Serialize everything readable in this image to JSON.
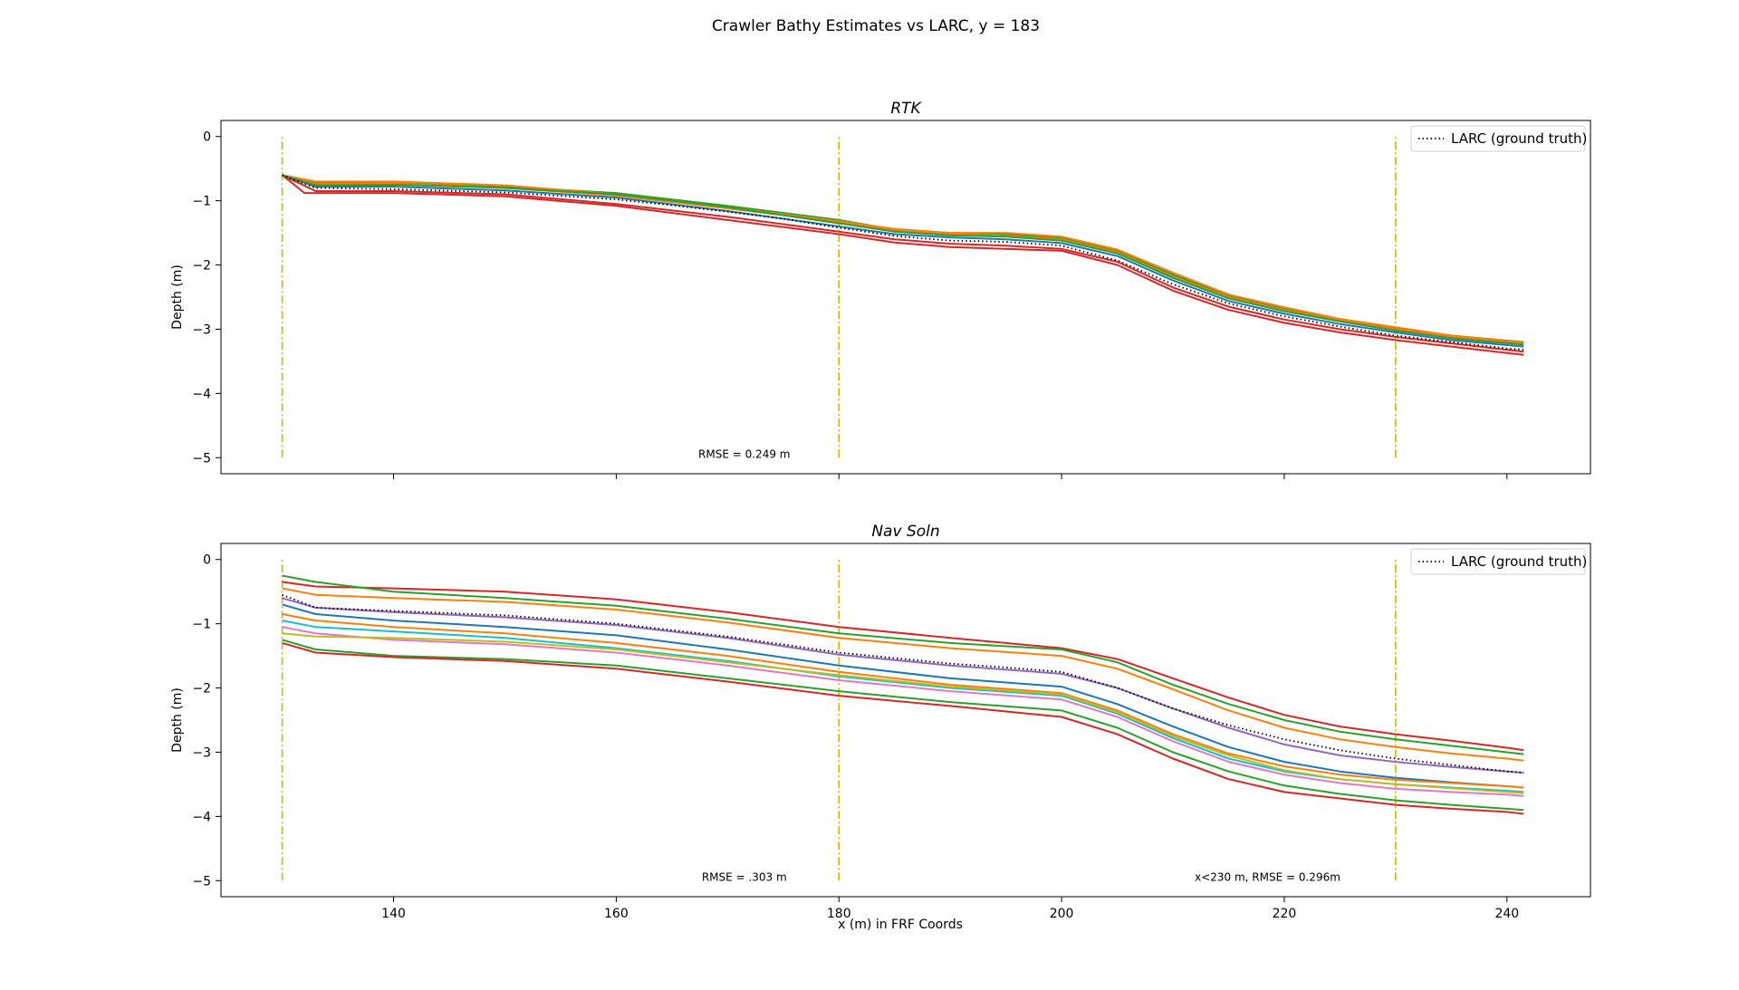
{
  "figure": {
    "title": "Crawler Bathy Estimates vs LARC, y = 183",
    "xlabel": "x (m) in FRF Coords"
  },
  "chart_data": [
    {
      "type": "line",
      "title": "RTK",
      "xlabel": "",
      "ylabel": "Depth (m)",
      "xlim": [
        124.5,
        247.5
      ],
      "ylim": [
        -5.25,
        0.25
      ],
      "xticks": [
        140,
        160,
        180,
        200,
        220,
        240
      ],
      "yticks": [
        0,
        -1,
        -2,
        -3,
        -4,
        -5
      ],
      "show_xtick_labels": false,
      "grid": false,
      "legend": {
        "location": "top-right",
        "entries": [
          "LARC (ground truth)"
        ]
      },
      "vlines": {
        "x": [
          130,
          180,
          230
        ],
        "y_range": [
          -5,
          0
        ],
        "color": "#bfbf00",
        "style": "dash-dot"
      },
      "annotations": [
        {
          "text": "RMSE = 0.249 m",
          "x": 171.5,
          "y": -5
        }
      ],
      "ground_truth": {
        "name": "LARC (ground truth)",
        "color": "#000000",
        "style": "dotted",
        "x": [
          130,
          133,
          140,
          150,
          160,
          165,
          170,
          175,
          180,
          185,
          190,
          195,
          200,
          205,
          210,
          215,
          220,
          225,
          230,
          235,
          240,
          241.5
        ],
        "y": [
          -0.6,
          -0.8,
          -0.82,
          -0.87,
          -0.98,
          -1.07,
          -1.17,
          -1.28,
          -1.42,
          -1.55,
          -1.62,
          -1.64,
          -1.7,
          -1.93,
          -2.3,
          -2.6,
          -2.8,
          -2.96,
          -3.1,
          -3.2,
          -3.3,
          -3.32
        ]
      },
      "estimates": [
        {
          "color": "#2ca02c",
          "x": [
            130,
            133,
            140,
            150,
            160,
            170,
            180,
            185,
            190,
            195,
            200,
            205,
            210,
            215,
            220,
            225,
            230,
            235,
            241.5
          ],
          "y": [
            -0.6,
            -0.72,
            -0.72,
            -0.78,
            -0.88,
            -1.08,
            -1.3,
            -1.45,
            -1.5,
            -1.52,
            -1.58,
            -1.78,
            -2.15,
            -2.48,
            -2.68,
            -2.85,
            -2.98,
            -3.1,
            -3.2
          ]
        },
        {
          "color": "#ff7f0e",
          "x": [
            130,
            133,
            140,
            150,
            160,
            170,
            180,
            185,
            190,
            195,
            200,
            205,
            210,
            215,
            220,
            225,
            230,
            235,
            241.5
          ],
          "y": [
            -0.6,
            -0.74,
            -0.73,
            -0.8,
            -0.92,
            -1.12,
            -1.33,
            -1.47,
            -1.52,
            -1.55,
            -1.6,
            -1.8,
            -2.18,
            -2.5,
            -2.7,
            -2.87,
            -3.0,
            -3.12,
            -3.23
          ]
        },
        {
          "color": "#1f77b4",
          "x": [
            130,
            133,
            140,
            150,
            160,
            170,
            180,
            185,
            190,
            195,
            200,
            205,
            210,
            215,
            220,
            225,
            230,
            235,
            241.5
          ],
          "y": [
            -0.6,
            -0.78,
            -0.78,
            -0.84,
            -0.95,
            -1.16,
            -1.4,
            -1.52,
            -1.57,
            -1.6,
            -1.66,
            -1.86,
            -2.24,
            -2.56,
            -2.76,
            -2.92,
            -3.05,
            -3.17,
            -3.27
          ]
        },
        {
          "color": "#d62728",
          "x": [
            130,
            133,
            140,
            150,
            160,
            170,
            180,
            185,
            190,
            195,
            200,
            205,
            210,
            215,
            220,
            225,
            230,
            235,
            241.5
          ],
          "y": [
            -0.6,
            -0.85,
            -0.85,
            -0.9,
            -1.05,
            -1.25,
            -1.48,
            -1.6,
            -1.67,
            -1.7,
            -1.75,
            -1.95,
            -2.35,
            -2.65,
            -2.85,
            -3.0,
            -3.12,
            -3.22,
            -3.35
          ]
        },
        {
          "color": "#d62728",
          "x": [
            130,
            132,
            140,
            150,
            160,
            170,
            180,
            185,
            190,
            195,
            200,
            205,
            210,
            215,
            220,
            225,
            230,
            235,
            241.5
          ],
          "y": [
            -0.6,
            -0.88,
            -0.88,
            -0.93,
            -1.08,
            -1.3,
            -1.52,
            -1.65,
            -1.72,
            -1.75,
            -1.78,
            -2.0,
            -2.4,
            -2.7,
            -2.9,
            -3.05,
            -3.17,
            -3.27,
            -3.4
          ]
        },
        {
          "color": "#ff7f0e",
          "x": [
            130,
            133,
            140,
            150,
            160,
            170,
            180,
            185,
            190,
            195,
            200,
            205,
            210,
            215,
            220,
            225,
            230,
            235,
            241.5
          ],
          "y": [
            -0.6,
            -0.7,
            -0.7,
            -0.76,
            -0.9,
            -1.1,
            -1.32,
            -1.44,
            -1.5,
            -1.5,
            -1.56,
            -1.76,
            -2.12,
            -2.46,
            -2.66,
            -2.84,
            -2.97,
            -3.1,
            -3.21
          ]
        },
        {
          "color": "#2ca02c",
          "x": [
            130,
            133,
            140,
            150,
            160,
            170,
            180,
            185,
            190,
            195,
            200,
            205,
            210,
            215,
            220,
            225,
            230,
            235,
            241.5
          ],
          "y": [
            -0.6,
            -0.76,
            -0.75,
            -0.8,
            -0.9,
            -1.1,
            -1.35,
            -1.48,
            -1.54,
            -1.56,
            -1.62,
            -1.82,
            -2.2,
            -2.52,
            -2.72,
            -2.88,
            -3.02,
            -3.14,
            -3.24
          ]
        }
      ]
    },
    {
      "type": "line",
      "title": "Nav Soln",
      "xlabel": "x (m) in FRF Coords",
      "ylabel": "Depth (m)",
      "xlim": [
        124.5,
        247.5
      ],
      "ylim": [
        -5.25,
        0.25
      ],
      "xticks": [
        140,
        160,
        180,
        200,
        220,
        240
      ],
      "yticks": [
        0,
        -1,
        -2,
        -3,
        -4,
        -5
      ],
      "show_xtick_labels": true,
      "grid": false,
      "legend": {
        "location": "top-right",
        "entries": [
          "LARC (ground truth)"
        ]
      },
      "vlines": {
        "x": [
          130,
          180,
          230
        ],
        "y_range": [
          -5,
          0
        ],
        "color": "#bfbf00",
        "style": "dash-dot"
      },
      "annotations": [
        {
          "text": "RMSE = .303 m",
          "x": 171.5,
          "y": -5
        },
        {
          "text": "x<230 m, RMSE = 0.296m",
          "x": 218.5,
          "y": -5
        }
      ],
      "ground_truth": {
        "name": "LARC (ground truth)",
        "color": "#000000",
        "style": "dotted",
        "x": [
          130,
          133,
          140,
          150,
          160,
          170,
          180,
          190,
          195,
          200,
          205,
          210,
          215,
          220,
          225,
          230,
          235,
          240,
          241.5
        ],
        "y": [
          -0.55,
          -0.75,
          -0.8,
          -0.87,
          -1.0,
          -1.2,
          -1.45,
          -1.62,
          -1.68,
          -1.75,
          -2.0,
          -2.32,
          -2.58,
          -2.8,
          -2.97,
          -3.1,
          -3.2,
          -3.3,
          -3.32
        ]
      },
      "estimates": [
        {
          "color": "#d62728",
          "x": [
            130,
            133,
            140,
            150,
            160,
            170,
            180,
            190,
            200,
            205,
            210,
            215,
            220,
            225,
            230,
            235,
            240,
            241.5
          ],
          "y": [
            -0.35,
            -0.42,
            -0.45,
            -0.5,
            -0.62,
            -0.82,
            -1.05,
            -1.22,
            -1.38,
            -1.55,
            -1.85,
            -2.15,
            -2.42,
            -2.6,
            -2.72,
            -2.82,
            -2.93,
            -2.97
          ]
        },
        {
          "color": "#2ca02c",
          "x": [
            130,
            133,
            140,
            150,
            160,
            170,
            180,
            190,
            200,
            205,
            210,
            215,
            220,
            225,
            230,
            235,
            240,
            241.5
          ],
          "y": [
            -0.25,
            -0.35,
            -0.5,
            -0.6,
            -0.72,
            -0.92,
            -1.15,
            -1.3,
            -1.4,
            -1.6,
            -1.95,
            -2.25,
            -2.5,
            -2.68,
            -2.8,
            -2.9,
            -3.0,
            -3.03
          ]
        },
        {
          "color": "#ff7f0e",
          "x": [
            130,
            133,
            140,
            150,
            160,
            170,
            180,
            190,
            200,
            205,
            210,
            215,
            220,
            225,
            230,
            235,
            240,
            241.5
          ],
          "y": [
            -0.45,
            -0.55,
            -0.6,
            -0.66,
            -0.78,
            -0.98,
            -1.22,
            -1.38,
            -1.5,
            -1.7,
            -2.02,
            -2.35,
            -2.62,
            -2.8,
            -2.92,
            -3.02,
            -3.1,
            -3.13
          ]
        },
        {
          "color": "#9467bd",
          "x": [
            130,
            133,
            140,
            150,
            160,
            170,
            180,
            190,
            200,
            205,
            210,
            215,
            220,
            225,
            230,
            235,
            240,
            241.5
          ],
          "y": [
            -0.6,
            -0.75,
            -0.82,
            -0.9,
            -1.02,
            -1.22,
            -1.48,
            -1.65,
            -1.78,
            -2.0,
            -2.32,
            -2.62,
            -2.88,
            -3.05,
            -3.15,
            -3.23,
            -3.3,
            -3.32
          ]
        },
        {
          "color": "#1f77b4",
          "x": [
            130,
            133,
            140,
            150,
            160,
            170,
            180,
            190,
            200,
            205,
            210,
            215,
            220,
            225,
            230,
            235,
            240,
            241.5
          ],
          "y": [
            -0.7,
            -0.85,
            -0.95,
            -1.05,
            -1.18,
            -1.4,
            -1.65,
            -1.85,
            -1.98,
            -2.25,
            -2.6,
            -2.92,
            -3.15,
            -3.3,
            -3.4,
            -3.47,
            -3.53,
            -3.55
          ]
        },
        {
          "color": "#ff7f0e",
          "x": [
            130,
            133,
            140,
            150,
            160,
            170,
            180,
            190,
            200,
            205,
            210,
            215,
            220,
            225,
            230,
            235,
            240,
            241.5
          ],
          "y": [
            -0.85,
            -0.95,
            -1.05,
            -1.15,
            -1.3,
            -1.5,
            -1.75,
            -1.95,
            -2.08,
            -2.35,
            -2.72,
            -3.02,
            -3.22,
            -3.35,
            -3.43,
            -3.48,
            -3.53,
            -3.55
          ]
        },
        {
          "color": "#17becf",
          "x": [
            130,
            133,
            140,
            150,
            160,
            170,
            180,
            190,
            200,
            205,
            210,
            215,
            220,
            225,
            230,
            235,
            240,
            241.5
          ],
          "y": [
            -0.95,
            -1.05,
            -1.12,
            -1.22,
            -1.38,
            -1.58,
            -1.82,
            -2.0,
            -2.12,
            -2.4,
            -2.78,
            -3.1,
            -3.3,
            -3.42,
            -3.5,
            -3.55,
            -3.6,
            -3.62
          ]
        },
        {
          "color": "#e377c2",
          "x": [
            130,
            133,
            140,
            150,
            160,
            170,
            180,
            190,
            200,
            205,
            210,
            215,
            220,
            225,
            230,
            235,
            240,
            241.5
          ],
          "y": [
            -1.05,
            -1.15,
            -1.25,
            -1.32,
            -1.45,
            -1.65,
            -1.88,
            -2.05,
            -2.18,
            -2.45,
            -2.83,
            -3.15,
            -3.35,
            -3.48,
            -3.57,
            -3.62,
            -3.66,
            -3.68
          ]
        },
        {
          "color": "#bcbd22",
          "x": [
            130,
            133,
            140,
            150,
            160,
            170,
            180,
            190,
            200,
            205,
            210,
            215,
            220,
            225,
            230,
            235,
            240,
            241.5
          ],
          "y": [
            -1.15,
            -1.2,
            -1.22,
            -1.28,
            -1.4,
            -1.6,
            -1.8,
            -1.98,
            -2.1,
            -2.38,
            -2.75,
            -3.05,
            -3.28,
            -3.42,
            -3.5,
            -3.56,
            -3.62,
            -3.64
          ]
        },
        {
          "color": "#2ca02c",
          "x": [
            130,
            133,
            140,
            150,
            160,
            170,
            180,
            190,
            200,
            205,
            210,
            215,
            220,
            225,
            230,
            235,
            240,
            241.5
          ],
          "y": [
            -1.25,
            -1.4,
            -1.5,
            -1.55,
            -1.65,
            -1.85,
            -2.05,
            -2.22,
            -2.35,
            -2.62,
            -3.0,
            -3.3,
            -3.52,
            -3.65,
            -3.75,
            -3.82,
            -3.88,
            -3.9
          ]
        },
        {
          "color": "#d62728",
          "x": [
            130,
            133,
            140,
            150,
            160,
            170,
            180,
            190,
            200,
            205,
            210,
            215,
            220,
            225,
            230,
            235,
            240,
            241.5
          ],
          "y": [
            -1.3,
            -1.45,
            -1.52,
            -1.58,
            -1.7,
            -1.9,
            -2.12,
            -2.28,
            -2.45,
            -2.72,
            -3.1,
            -3.42,
            -3.62,
            -3.72,
            -3.82,
            -3.88,
            -3.93,
            -3.96
          ]
        }
      ]
    }
  ]
}
